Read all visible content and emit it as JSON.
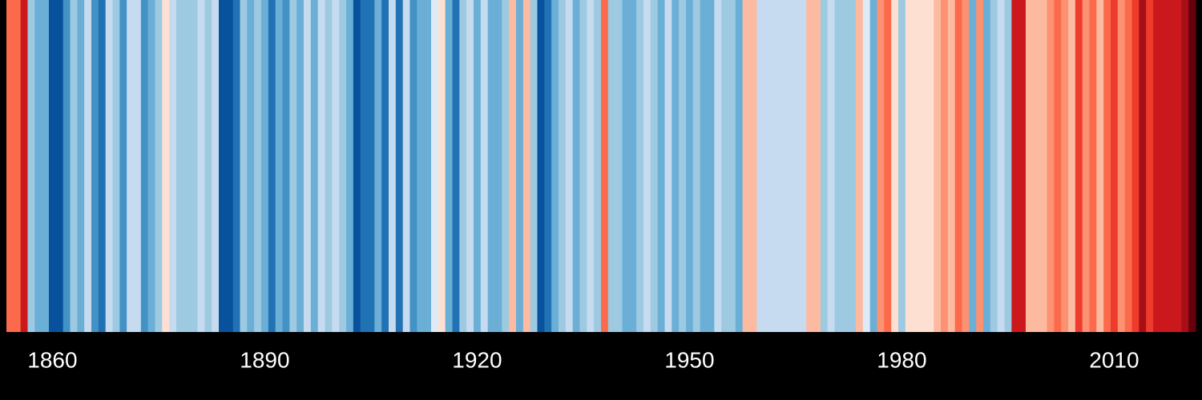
{
  "chart_data": {
    "type": "stripes",
    "x": [
      1854,
      1855,
      1856,
      1857,
      1858,
      1859,
      1860,
      1861,
      1862,
      1863,
      1864,
      1865,
      1866,
      1867,
      1868,
      1869,
      1870,
      1871,
      1872,
      1873,
      1874,
      1875,
      1876,
      1877,
      1878,
      1879,
      1880,
      1881,
      1882,
      1883,
      1884,
      1885,
      1886,
      1887,
      1888,
      1889,
      1890,
      1891,
      1892,
      1893,
      1894,
      1895,
      1896,
      1897,
      1898,
      1899,
      1900,
      1901,
      1902,
      1903,
      1904,
      1905,
      1906,
      1907,
      1908,
      1909,
      1910,
      1911,
      1912,
      1913,
      1914,
      1915,
      1916,
      1917,
      1918,
      1919,
      1920,
      1921,
      1922,
      1923,
      1924,
      1925,
      1926,
      1927,
      1928,
      1929,
      1930,
      1931,
      1932,
      1933,
      1934,
      1935,
      1936,
      1937,
      1938,
      1939,
      1940,
      1941,
      1942,
      1943,
      1944,
      1945,
      1946,
      1947,
      1948,
      1949,
      1950,
      1951,
      1952,
      1953,
      1954,
      1955,
      1956,
      1957,
      1958,
      1959,
      1960,
      1961,
      1962,
      1963,
      1964,
      1965,
      1966,
      1967,
      1968,
      1969,
      1970,
      1971,
      1972,
      1973,
      1974,
      1975,
      1976,
      1977,
      1978,
      1979,
      1980,
      1981,
      1982,
      1983,
      1984,
      1985,
      1986,
      1987,
      1988,
      1989,
      1990,
      1991,
      1992,
      1993,
      1994,
      1995,
      1996,
      1997,
      1998,
      1999,
      2000,
      2001,
      2002,
      2003,
      2004,
      2005,
      2006,
      2007,
      2008,
      2009,
      2010,
      2011,
      2012,
      2013,
      2014,
      2015,
      2016,
      2017,
      2018,
      2019,
      2020,
      2021
    ],
    "values": [
      0.3,
      0.3,
      0.45,
      -0.25,
      -0.35,
      -0.35,
      -0.6,
      -0.6,
      -0.4,
      -0.25,
      -0.35,
      -0.15,
      -0.4,
      -0.5,
      -0.1,
      -0.2,
      -0.4,
      -0.15,
      -0.1,
      -0.4,
      -0.35,
      -0.2,
      0.02,
      -0.1,
      -0.2,
      -0.2,
      -0.2,
      -0.15,
      -0.2,
      -0.1,
      -0.55,
      -0.6,
      -0.45,
      -0.25,
      -0.35,
      -0.2,
      -0.3,
      -0.45,
      -0.35,
      -0.4,
      -0.25,
      -0.3,
      -0.15,
      -0.3,
      -0.15,
      -0.2,
      -0.15,
      -0.2,
      -0.35,
      -0.6,
      -0.5,
      -0.5,
      -0.3,
      -0.5,
      -0.1,
      -0.5,
      -0.15,
      -0.4,
      -0.3,
      -0.3,
      -0.05,
      0.05,
      -0.3,
      -0.5,
      -0.2,
      -0.15,
      -0.3,
      -0.15,
      -0.35,
      -0.35,
      -0.25,
      0.15,
      -0.3,
      0.1,
      -0.25,
      -0.55,
      -0.5,
      -0.35,
      -0.2,
      -0.1,
      -0.3,
      -0.2,
      -0.1,
      -0.25,
      0.35,
      -0.25,
      -0.25,
      -0.3,
      -0.3,
      -0.25,
      -0.15,
      -0.2,
      -0.3,
      -0.1,
      -0.3,
      -0.25,
      -0.3,
      -0.2,
      -0.35,
      -0.3,
      -0.15,
      -0.2,
      -0.25,
      -0.3,
      0.15,
      0.15,
      -0.15,
      -0.1,
      -0.15,
      -0.15,
      -0.1,
      -0.15,
      -0.1,
      0.12,
      0.12,
      -0.2,
      -0.1,
      -0.25,
      -0.2,
      -0.2,
      0.15,
      -0.05,
      -0.3,
      0.2,
      0.3,
      0.05,
      -0.25,
      0.05,
      0.05,
      0.05,
      0.02,
      0.15,
      0.25,
      0.15,
      0.3,
      0.25,
      -0.3,
      0.25,
      -0.35,
      -0.2,
      -0.1,
      -0.2,
      0.5,
      0.45,
      0.15,
      0.15,
      0.15,
      0.2,
      0.3,
      0.25,
      0.15,
      0.4,
      0.2,
      0.3,
      0.15,
      0.3,
      0.4,
      0.2,
      0.3,
      0.4,
      0.55,
      0.4,
      0.5,
      0.5,
      0.45,
      0.45,
      0.55,
      0.65
    ],
    "colormap": [
      "#08306b",
      "#08519c",
      "#2171b5",
      "#4292c6",
      "#6baed6",
      "#9ecae1",
      "#c6dbef",
      "#deebf7",
      "#fee0d2",
      "#fcbba1",
      "#fc9272",
      "#fb6a4a",
      "#ef3b2c",
      "#cb181d",
      "#a50f15",
      "#67000d"
    ],
    "vlim": [
      -0.7,
      0.7
    ],
    "xlim": [
      1853.5,
      2021.5
    ],
    "xticks": [
      1860,
      1890,
      1920,
      1950,
      1980,
      2010
    ]
  }
}
